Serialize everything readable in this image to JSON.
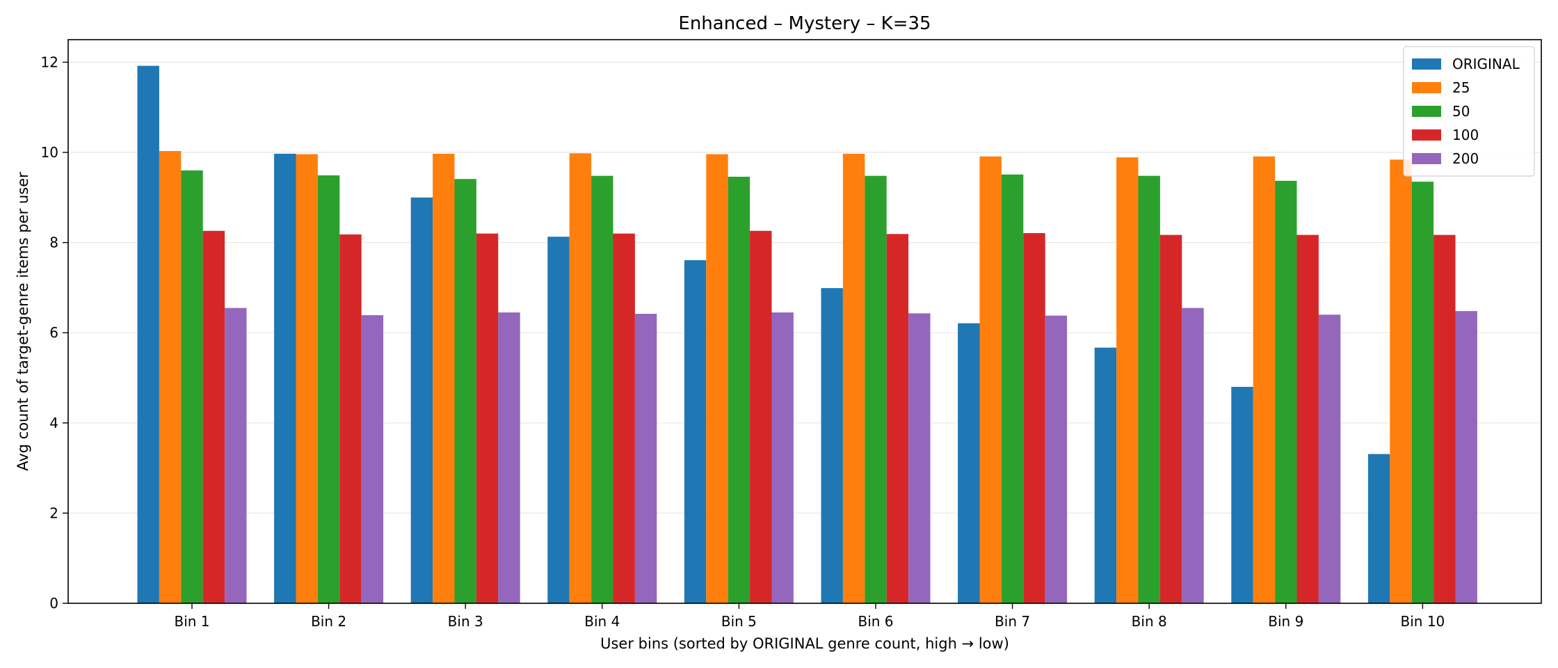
{
  "chart_data": {
    "type": "bar",
    "title": "Enhanced – Mystery – K=35",
    "xlabel": "User bins (sorted by ORIGINAL genre count, high → low)",
    "ylabel": "Avg count of target-genre items per user",
    "ylim": [
      0,
      12.5
    ],
    "yticks": [
      0,
      2,
      4,
      6,
      8,
      10,
      12
    ],
    "grid": "y-axis light",
    "legend_position": "top-right",
    "categories": [
      "Bin 1",
      "Bin 2",
      "Bin 3",
      "Bin 4",
      "Bin 5",
      "Bin 6",
      "Bin 7",
      "Bin 8",
      "Bin 9",
      "Bin 10"
    ],
    "series": [
      {
        "name": "ORIGINAL",
        "color": "#1f77b4",
        "values": [
          11.92,
          9.97,
          9.0,
          8.13,
          7.61,
          6.99,
          6.21,
          5.67,
          4.8,
          3.31
        ]
      },
      {
        "name": "25",
        "color": "#ff7f0e",
        "values": [
          10.03,
          9.96,
          9.97,
          9.98,
          9.96,
          9.97,
          9.91,
          9.89,
          9.91,
          9.84
        ]
      },
      {
        "name": "50",
        "color": "#2ca02c",
        "values": [
          9.6,
          9.49,
          9.41,
          9.48,
          9.46,
          9.48,
          9.51,
          9.48,
          9.37,
          9.35
        ]
      },
      {
        "name": "100",
        "color": "#d62728",
        "values": [
          8.26,
          8.18,
          8.2,
          8.2,
          8.26,
          8.19,
          8.21,
          8.17,
          8.17,
          8.17
        ]
      },
      {
        "name": "200",
        "color": "#9467bd",
        "values": [
          6.55,
          6.39,
          6.45,
          6.42,
          6.45,
          6.43,
          6.38,
          6.55,
          6.4,
          6.48
        ]
      }
    ]
  }
}
